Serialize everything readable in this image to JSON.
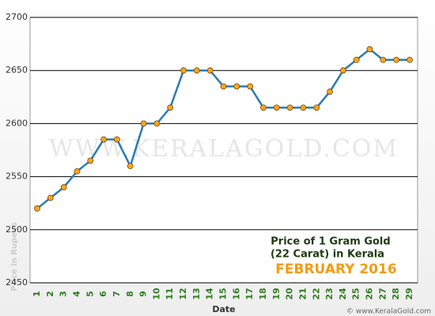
{
  "chart_data": {
    "type": "line",
    "watermark": "WWW.KERALAGOLD.COM",
    "annotation_lines": [
      "Price of 1 Gram Gold",
      "(22 Carat) in Kerala"
    ],
    "annotation_highlight": "FEBRUARY 2016",
    "x_label": "Date",
    "y_label": "Price in Rupees",
    "footer": "© www.KeralaGold.com",
    "categories": [
      "1",
      "2",
      "3",
      "4",
      "5",
      "6",
      "7",
      "8",
      "9",
      "10",
      "11",
      "12",
      "13",
      "14",
      "15",
      "16",
      "17",
      "18",
      "19",
      "20",
      "21",
      "22",
      "23",
      "24",
      "25",
      "26",
      "27",
      "28",
      "29"
    ],
    "values": [
      2520,
      2530,
      2540,
      2555,
      2565,
      2585,
      2585,
      2560,
      2600,
      2600,
      2615,
      2650,
      2650,
      2650,
      2635,
      2635,
      2635,
      2615,
      2615,
      2615,
      2615,
      2615,
      2630,
      2650,
      2660,
      2670,
      2660,
      2660,
      2660
    ],
    "color": "#2b7bb4",
    "marker_color": "#f5a623",
    "ylim": [
      2450,
      2700
    ],
    "yticks": [
      2450,
      2500,
      2550,
      2600,
      2650,
      2700
    ],
    "grid": true
  }
}
